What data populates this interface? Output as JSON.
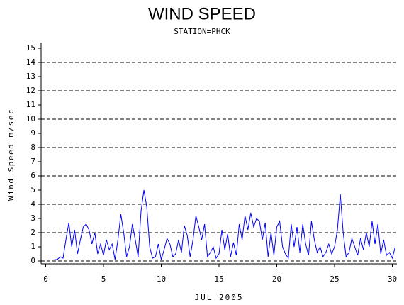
{
  "chart_data": {
    "type": "line",
    "title": "WIND SPEED",
    "subtitle": "STATION=PHCK",
    "x_label": "JUL 2005",
    "y_label": "Wind Speed m/sec",
    "color": "#0000ff",
    "xlim": [
      -0.4,
      30.4
    ],
    "xticks": [
      0,
      5,
      10,
      15,
      20,
      25,
      30
    ],
    "ylim": [
      -0.2,
      15.4
    ],
    "yticks": [
      0,
      1,
      2,
      3,
      4,
      5,
      6,
      7,
      8,
      9,
      10,
      11,
      12,
      13,
      14,
      15
    ],
    "grid": true,
    "grid_interval": 2,
    "x": [
      0.75,
      1,
      1.25,
      1.5,
      1.75,
      2,
      2.25,
      2.5,
      2.75,
      3,
      3.25,
      3.5,
      3.75,
      4,
      4.25,
      4.5,
      4.75,
      5,
      5.25,
      5.5,
      5.75,
      6,
      6.25,
      6.5,
      6.75,
      7,
      7.25,
      7.5,
      7.75,
      8,
      8.25,
      8.5,
      8.75,
      9,
      9.25,
      9.5,
      9.75,
      10,
      10.25,
      10.5,
      10.75,
      11,
      11.25,
      11.5,
      11.75,
      12,
      12.25,
      12.5,
      12.75,
      13,
      13.25,
      13.5,
      13.75,
      14,
      14.25,
      14.5,
      14.75,
      15,
      15.25,
      15.5,
      15.75,
      16,
      16.25,
      16.5,
      16.75,
      17,
      17.25,
      17.5,
      17.75,
      18,
      18.25,
      18.5,
      18.75,
      19,
      19.25,
      19.5,
      19.75,
      20,
      20.25,
      20.5,
      20.75,
      21,
      21.25,
      21.5,
      21.75,
      22,
      22.25,
      22.5,
      22.75,
      23,
      23.25,
      23.5,
      23.75,
      24,
      24.25,
      24.5,
      24.75,
      25,
      25.25,
      25.5,
      25.75,
      26,
      26.25,
      26.5,
      26.75,
      27,
      27.25,
      27.5,
      27.75,
      28,
      28.25,
      28.5,
      28.75,
      29,
      29.25,
      29.5,
      29.75,
      30,
      30.25
    ],
    "values": [
      0.1,
      0.1,
      0.3,
      0.2,
      1.5,
      2.7,
      1.0,
      2.2,
      0.5,
      1.5,
      2.4,
      2.6,
      2.2,
      1.2,
      2.0,
      0.5,
      1.2,
      0.4,
      1.5,
      0.8,
      1.2,
      0.1,
      1.5,
      3.3,
      2.0,
      0.3,
      1.0,
      2.6,
      1.5,
      0.3,
      3.5,
      5.0,
      3.8,
      1.0,
      0.2,
      0.3,
      1.2,
      0.1,
      0.8,
      1.6,
      1.2,
      0.3,
      0.5,
      1.5,
      0.6,
      2.5,
      1.8,
      0.3,
      1.5,
      3.2,
      2.4,
      1.5,
      2.6,
      0.3,
      0.6,
      1.0,
      0.2,
      0.5,
      2.2,
      0.8,
      1.9,
      0.3,
      1.3,
      0.4,
      2.6,
      1.5,
      3.2,
      2.2,
      3.4,
      2.4,
      3.0,
      2.8,
      1.5,
      2.7,
      0.3,
      2.0,
      0.4,
      2.4,
      2.8,
      1.0,
      0.5,
      0.2,
      2.6,
      1.0,
      2.4,
      0.6,
      2.6,
      1.2,
      0.4,
      2.8,
      1.5,
      0.6,
      1.0,
      0.3,
      0.6,
      1.2,
      0.5,
      1.0,
      2.2,
      4.7,
      2.0,
      0.3,
      0.6,
      1.6,
      1.0,
      0.4,
      1.6,
      0.8,
      2.0,
      1.0,
      2.8,
      1.2,
      2.6,
      0.5,
      1.5,
      0.4,
      0.6,
      0.2,
      1.0
    ]
  }
}
